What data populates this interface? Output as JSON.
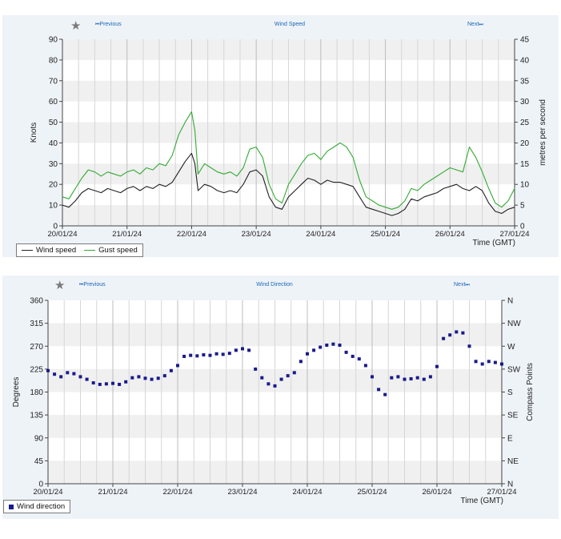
{
  "panel1": {
    "nav_prev": "Previous",
    "nav_title": "Wind Speed",
    "nav_next": "Next"
  },
  "panel2": {
    "nav_prev": "Previous",
    "nav_title": "Wind Direction",
    "nav_next": "Next"
  },
  "icons": {
    "favourite": "star-icon",
    "prev": "skip-back-icon",
    "next": "skip-forward-icon"
  },
  "colors": {
    "wind_speed": "#222222",
    "gust_speed": "#33aa33",
    "wind_direction": "#1a1a8c",
    "band": "#f0f0f0",
    "panel": "#eef3f8"
  },
  "chart_data": [
    {
      "type": "line",
      "title": "",
      "xlabel": "Time (GMT)",
      "ylabel": "Knots",
      "y2label": "metres per second",
      "x_ticks": [
        "20/01/24",
        "21/01/24",
        "22/01/24",
        "23/01/24",
        "24/01/24",
        "25/01/24",
        "26/01/24",
        "27/01/24"
      ],
      "xlim": [
        0,
        7
      ],
      "ylim": [
        0,
        90
      ],
      "y_ticks": [
        0,
        10,
        20,
        30,
        40,
        50,
        60,
        70,
        80,
        90
      ],
      "y2lim": [
        0,
        45
      ],
      "y2_ticks": [
        0,
        5,
        10,
        15,
        20,
        25,
        30,
        35,
        40,
        45
      ],
      "grid": "vertical lines at 6h, alternating horizontal bands",
      "legend": "bottom-left",
      "series": [
        {
          "name": "Wind speed",
          "color": "#222222",
          "x": [
            0,
            0.1,
            0.2,
            0.3,
            0.4,
            0.5,
            0.6,
            0.7,
            0.8,
            0.9,
            1,
            1.1,
            1.2,
            1.3,
            1.4,
            1.5,
            1.6,
            1.7,
            1.8,
            1.9,
            2,
            2.05,
            2.1,
            2.2,
            2.3,
            2.4,
            2.5,
            2.6,
            2.7,
            2.8,
            2.9,
            3,
            3.1,
            3.2,
            3.3,
            3.4,
            3.5,
            3.6,
            3.7,
            3.8,
            3.9,
            4,
            4.1,
            4.2,
            4.3,
            4.4,
            4.5,
            4.6,
            4.7,
            4.8,
            4.9,
            5,
            5.1,
            5.2,
            5.3,
            5.4,
            5.5,
            5.6,
            5.7,
            5.8,
            5.9,
            6,
            6.1,
            6.2,
            6.3,
            6.4,
            6.5,
            6.6,
            6.7,
            6.8,
            6.9,
            7
          ],
          "y": [
            10,
            9,
            12,
            16,
            18,
            17,
            16,
            18,
            17,
            16,
            18,
            19,
            17,
            19,
            18,
            20,
            19,
            21,
            26,
            31,
            35,
            30,
            17,
            20,
            19,
            17,
            16,
            17,
            16,
            20,
            26,
            27,
            24,
            14,
            9,
            8,
            14,
            17,
            20,
            23,
            22,
            20,
            22,
            21,
            21,
            20,
            19,
            14,
            9,
            8,
            7,
            6,
            5,
            6,
            8,
            13,
            12,
            14,
            15,
            16,
            18,
            19,
            20,
            18,
            17,
            19,
            17,
            11,
            7,
            6,
            8,
            9
          ]
        },
        {
          "name": "Gust speed",
          "color": "#33aa33",
          "x": [
            0,
            0.1,
            0.2,
            0.3,
            0.4,
            0.5,
            0.6,
            0.7,
            0.8,
            0.9,
            1,
            1.1,
            1.2,
            1.3,
            1.4,
            1.5,
            1.6,
            1.7,
            1.8,
            1.9,
            2,
            2.05,
            2.1,
            2.2,
            2.3,
            2.4,
            2.5,
            2.6,
            2.7,
            2.8,
            2.9,
            3,
            3.1,
            3.2,
            3.3,
            3.4,
            3.5,
            3.6,
            3.7,
            3.8,
            3.9,
            4,
            4.1,
            4.2,
            4.3,
            4.4,
            4.5,
            4.6,
            4.7,
            4.8,
            4.9,
            5,
            5.1,
            5.2,
            5.3,
            5.4,
            5.5,
            5.6,
            5.7,
            5.8,
            5.9,
            6,
            6.1,
            6.2,
            6.3,
            6.4,
            6.5,
            6.6,
            6.7,
            6.8,
            6.9,
            7
          ],
          "y": [
            14,
            13,
            18,
            23,
            27,
            26,
            24,
            26,
            25,
            24,
            26,
            27,
            25,
            28,
            27,
            30,
            29,
            34,
            44,
            50,
            55,
            46,
            25,
            30,
            28,
            26,
            25,
            26,
            24,
            28,
            37,
            38,
            33,
            20,
            13,
            11,
            20,
            25,
            30,
            34,
            35,
            32,
            36,
            38,
            40,
            38,
            33,
            22,
            14,
            12,
            10,
            9,
            8,
            9,
            12,
            18,
            17,
            20,
            22,
            24,
            26,
            28,
            27,
            26,
            38,
            33,
            26,
            18,
            11,
            9,
            12,
            18
          ]
        }
      ]
    },
    {
      "type": "scatter",
      "title": "",
      "xlabel": "Time (GMT)",
      "ylabel": "Degrees",
      "y2label": "Compass Points",
      "x_ticks": [
        "20/01/24",
        "21/01/24",
        "22/01/24",
        "23/01/24",
        "24/01/24",
        "25/01/24",
        "26/01/24",
        "27/01/24"
      ],
      "xlim": [
        0,
        7
      ],
      "ylim": [
        0,
        360
      ],
      "y_ticks": [
        0,
        45,
        90,
        135,
        180,
        225,
        270,
        315,
        360
      ],
      "y2_ticks": [
        "N",
        "NE",
        "E",
        "SE",
        "S",
        "SW",
        "W",
        "NW",
        "N"
      ],
      "grid": "vertical lines at 6h, alternating horizontal bands",
      "legend": "bottom-left",
      "series": [
        {
          "name": "Wind direction",
          "color": "#1a1a8c",
          "x": [
            0,
            0.1,
            0.2,
            0.3,
            0.4,
            0.5,
            0.6,
            0.7,
            0.8,
            0.9,
            1,
            1.1,
            1.2,
            1.3,
            1.4,
            1.5,
            1.6,
            1.7,
            1.8,
            1.9,
            2,
            2.1,
            2.2,
            2.3,
            2.4,
            2.5,
            2.6,
            2.7,
            2.8,
            2.9,
            3,
            3.1,
            3.2,
            3.3,
            3.4,
            3.5,
            3.6,
            3.7,
            3.8,
            3.9,
            4,
            4.1,
            4.2,
            4.3,
            4.4,
            4.5,
            4.6,
            4.7,
            4.8,
            4.9,
            5,
            5.1,
            5.2,
            5.3,
            5.4,
            5.5,
            5.6,
            5.7,
            5.8,
            5.9,
            6,
            6.1,
            6.2,
            6.3,
            6.4,
            6.5,
            6.6,
            6.7,
            6.8,
            6.9,
            7
          ],
          "y": [
            222,
            215,
            210,
            218,
            216,
            210,
            205,
            198,
            195,
            196,
            197,
            195,
            200,
            208,
            210,
            207,
            205,
            207,
            212,
            222,
            232,
            250,
            252,
            251,
            253,
            252,
            255,
            254,
            256,
            262,
            265,
            262,
            225,
            208,
            196,
            192,
            205,
            212,
            218,
            240,
            255,
            262,
            268,
            272,
            274,
            272,
            258,
            250,
            245,
            232,
            210,
            185,
            175,
            208,
            210,
            205,
            206,
            208,
            205,
            210,
            230,
            285,
            292,
            298,
            296,
            270,
            240,
            235,
            240,
            238,
            235
          ]
        }
      ]
    }
  ]
}
